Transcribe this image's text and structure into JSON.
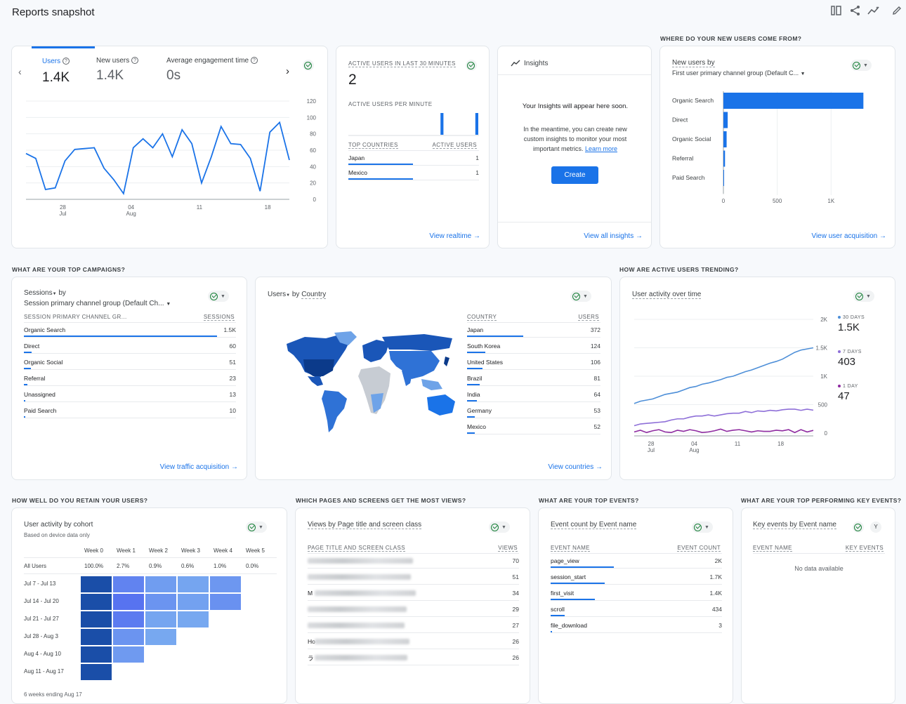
{
  "page": {
    "title": "Reports snapshot"
  },
  "sections": {
    "new_users_from": "WHERE DO YOUR NEW USERS COME FROM?",
    "top_campaigns": "WHAT ARE YOUR TOP CAMPAIGNS?",
    "active_trending": "HOW ARE ACTIVE USERS TRENDING?",
    "retain": "HOW WELL DO YOU RETAIN YOUR USERS?",
    "pages": "WHICH PAGES AND SCREENS GET THE MOST VIEWS?",
    "events": "WHAT ARE YOUR TOP EVENTS?",
    "key_events": "WHAT ARE YOUR TOP PERFORMING KEY EVENTS?"
  },
  "overview": {
    "metrics": [
      {
        "label": "Users",
        "value": "1.4K"
      },
      {
        "label": "New users",
        "value": "1.4K"
      },
      {
        "label": "Average engagement time",
        "value": "0s"
      }
    ],
    "chart": {
      "type": "line",
      "x_ticks": [
        {
          "d": "28",
          "m": "Jul"
        },
        {
          "d": "04",
          "m": "Aug"
        },
        {
          "d": "11",
          "m": ""
        },
        {
          "d": "18",
          "m": ""
        }
      ],
      "y_ticks": [
        "120",
        "100",
        "80",
        "60",
        "40",
        "20",
        "0"
      ],
      "ylim": [
        0,
        120
      ],
      "values": [
        56,
        50,
        12,
        14,
        47,
        61,
        62,
        63,
        38,
        24,
        7,
        63,
        74,
        63,
        80,
        52,
        85,
        68,
        20,
        52,
        89,
        68,
        67,
        50,
        10,
        82,
        94,
        48
      ]
    }
  },
  "realtime": {
    "title": "ACTIVE USERS IN LAST 30 MINUTES",
    "value": "2",
    "per_minute_label": "ACTIVE USERS PER MINUTE",
    "bars": [
      0,
      0,
      0,
      0,
      0,
      0,
      0,
      0,
      0,
      0,
      0,
      0,
      0,
      0,
      0,
      0,
      0,
      0,
      0,
      0,
      0,
      1,
      0,
      0,
      0,
      0,
      0,
      0,
      0,
      1
    ],
    "col_country": "TOP COUNTRIES",
    "col_users": "ACTIVE USERS",
    "rows": [
      {
        "name": "Japan",
        "value": "1",
        "pct": 100
      },
      {
        "name": "Mexico",
        "value": "1",
        "pct": 100
      }
    ],
    "link": "View realtime"
  },
  "insights": {
    "title": "Insights",
    "heading": "Your Insights will appear here soon.",
    "body": "In the meantime, you can create new custom insights to monitor your most important metrics.",
    "learn": "Learn more",
    "button": "Create",
    "link": "View all insights"
  },
  "new_users": {
    "title": "New users by",
    "subtitle": "First user primary channel group (Default C...",
    "chart_data": {
      "type": "bar",
      "orientation": "horizontal",
      "categories": [
        "Organic Search",
        "Direct",
        "Organic Social",
        "Referral",
        "Paid Search"
      ],
      "values": [
        1300,
        40,
        30,
        15,
        3
      ],
      "xlim": [
        0,
        1500
      ],
      "x_ticks": [
        "0",
        "500",
        "1K"
      ]
    },
    "link": "View user acquisition"
  },
  "campaigns": {
    "title": "Sessions",
    "title_by": "by",
    "subtitle": "Session primary channel group (Default Ch...",
    "col_name": "SESSION PRIMARY CHANNEL GR...",
    "col_value": "SESSIONS",
    "rows": [
      {
        "name": "Organic Search",
        "value": "1.5K",
        "pct": 100
      },
      {
        "name": "Direct",
        "value": "60",
        "pct": 4
      },
      {
        "name": "Organic Social",
        "value": "51",
        "pct": 3.5
      },
      {
        "name": "Referral",
        "value": "23",
        "pct": 1.7
      },
      {
        "name": "Unassigned",
        "value": "13",
        "pct": 0.9
      },
      {
        "name": "Paid Search",
        "value": "10",
        "pct": 0.7
      }
    ],
    "link": "View traffic acquisition"
  },
  "country": {
    "title": "Users",
    "title_by": "by",
    "title_dim": "Country",
    "col_name": "COUNTRY",
    "col_value": "USERS",
    "rows": [
      {
        "name": "Japan",
        "value": "372",
        "pct": 100
      },
      {
        "name": "South Korea",
        "value": "124",
        "pct": 33
      },
      {
        "name": "United States",
        "value": "106",
        "pct": 28
      },
      {
        "name": "Brazil",
        "value": "81",
        "pct": 22
      },
      {
        "name": "India",
        "value": "64",
        "pct": 17
      },
      {
        "name": "Germany",
        "value": "53",
        "pct": 14
      },
      {
        "name": "Mexico",
        "value": "52",
        "pct": 14
      }
    ],
    "link": "View countries"
  },
  "activity": {
    "title": "User activity over time",
    "legend": [
      {
        "label": "30 DAYS",
        "value": "1.5K",
        "color": "#4e8fd8"
      },
      {
        "label": "7 DAYS",
        "value": "403",
        "color": "#8e6fd8"
      },
      {
        "label": "1 DAY",
        "value": "47",
        "color": "#8e2aa0"
      }
    ],
    "chart_data": {
      "type": "line",
      "ylim": [
        0,
        2000
      ],
      "y_ticks": [
        "2K",
        "1.5K",
        "1K",
        "500",
        "0"
      ],
      "x_ticks": [
        {
          "d": "28",
          "m": "Jul"
        },
        {
          "d": "04",
          "m": "Aug"
        },
        {
          "d": "11",
          "m": ""
        },
        {
          "d": "18",
          "m": ""
        }
      ],
      "series": [
        {
          "name": "30 DAYS",
          "values": [
            520,
            560,
            580,
            600,
            640,
            680,
            700,
            720,
            760,
            800,
            820,
            860,
            880,
            910,
            940,
            980,
            1000,
            1040,
            1080,
            1110,
            1150,
            1190,
            1230,
            1260,
            1300,
            1360,
            1420,
            1460,
            1480,
            1500
          ]
        },
        {
          "name": "7 DAYS",
          "values": [
            130,
            160,
            170,
            180,
            190,
            200,
            230,
            250,
            250,
            280,
            300,
            300,
            320,
            300,
            320,
            340,
            350,
            350,
            380,
            360,
            390,
            380,
            400,
            390,
            410,
            420,
            420,
            400,
            420,
            403
          ]
        },
        {
          "name": "1 DAY",
          "values": [
            20,
            50,
            10,
            40,
            60,
            20,
            10,
            50,
            30,
            60,
            40,
            10,
            20,
            40,
            70,
            30,
            50,
            60,
            40,
            20,
            40,
            30,
            30,
            50,
            40,
            60,
            10,
            60,
            20,
            47
          ]
        }
      ]
    }
  },
  "cohort": {
    "title": "User activity by cohort",
    "subtitle": "Based on device data only",
    "weeks": [
      "Week 0",
      "Week 1",
      "Week 2",
      "Week 3",
      "Week 4",
      "Week 5"
    ],
    "all_label": "All Users",
    "all_values": [
      "100.0%",
      "2.7%",
      "0.9%",
      "0.6%",
      "1.0%",
      "0.0%"
    ],
    "rows": [
      {
        "label": "Jul 7 - Jul 13",
        "cells": [
          100,
          3.0,
          1.5,
          1.0,
          1.8
        ]
      },
      {
        "label": "Jul 14 - Jul 20",
        "cells": [
          100,
          4.0,
          2.0,
          1.2,
          2.2
        ]
      },
      {
        "label": "Jul 21 - Jul 27",
        "cells": [
          100,
          3.5,
          1.0,
          0.8
        ]
      },
      {
        "label": "Jul 28 - Aug 3",
        "cells": [
          100,
          2.0,
          0.8
        ]
      },
      {
        "label": "Aug 4 - Aug 10",
        "cells": [
          100,
          1.6
        ]
      },
      {
        "label": "Aug 11 - Aug 17",
        "cells": [
          100
        ]
      }
    ],
    "footer": "6 weeks ending Aug 17"
  },
  "pages": {
    "title": "Views by Page title and screen class",
    "col_name": "PAGE TITLE AND SCREEN CLASS",
    "col_value": "VIEWS",
    "rows": [
      {
        "prefix": "",
        "value": "70",
        "pct": 100
      },
      {
        "prefix": "",
        "value": "51",
        "pct": 73
      },
      {
        "prefix": "M",
        "value": "34",
        "pct": 49
      },
      {
        "prefix": "",
        "value": "29",
        "pct": 41
      },
      {
        "prefix": "",
        "value": "27",
        "pct": 39
      },
      {
        "prefix": "Ho",
        "value": "26",
        "pct": 37
      },
      {
        "prefix": "ラ",
        "value": "26",
        "pct": 37
      }
    ]
  },
  "events": {
    "title": "Event count by Event name",
    "col_name": "EVENT NAME",
    "col_value": "EVENT COUNT",
    "rows": [
      {
        "name": "page_view",
        "value": "2K",
        "pct": 100
      },
      {
        "name": "session_start",
        "value": "1.7K",
        "pct": 85
      },
      {
        "name": "first_visit",
        "value": "1.4K",
        "pct": 70
      },
      {
        "name": "scroll",
        "value": "434",
        "pct": 22
      },
      {
        "name": "file_download",
        "value": "3",
        "pct": 1
      }
    ]
  },
  "key_events": {
    "title": "Key events by Event name",
    "col_name": "EVENT NAME",
    "col_value": "KEY EVENTS",
    "empty": "No data available"
  }
}
